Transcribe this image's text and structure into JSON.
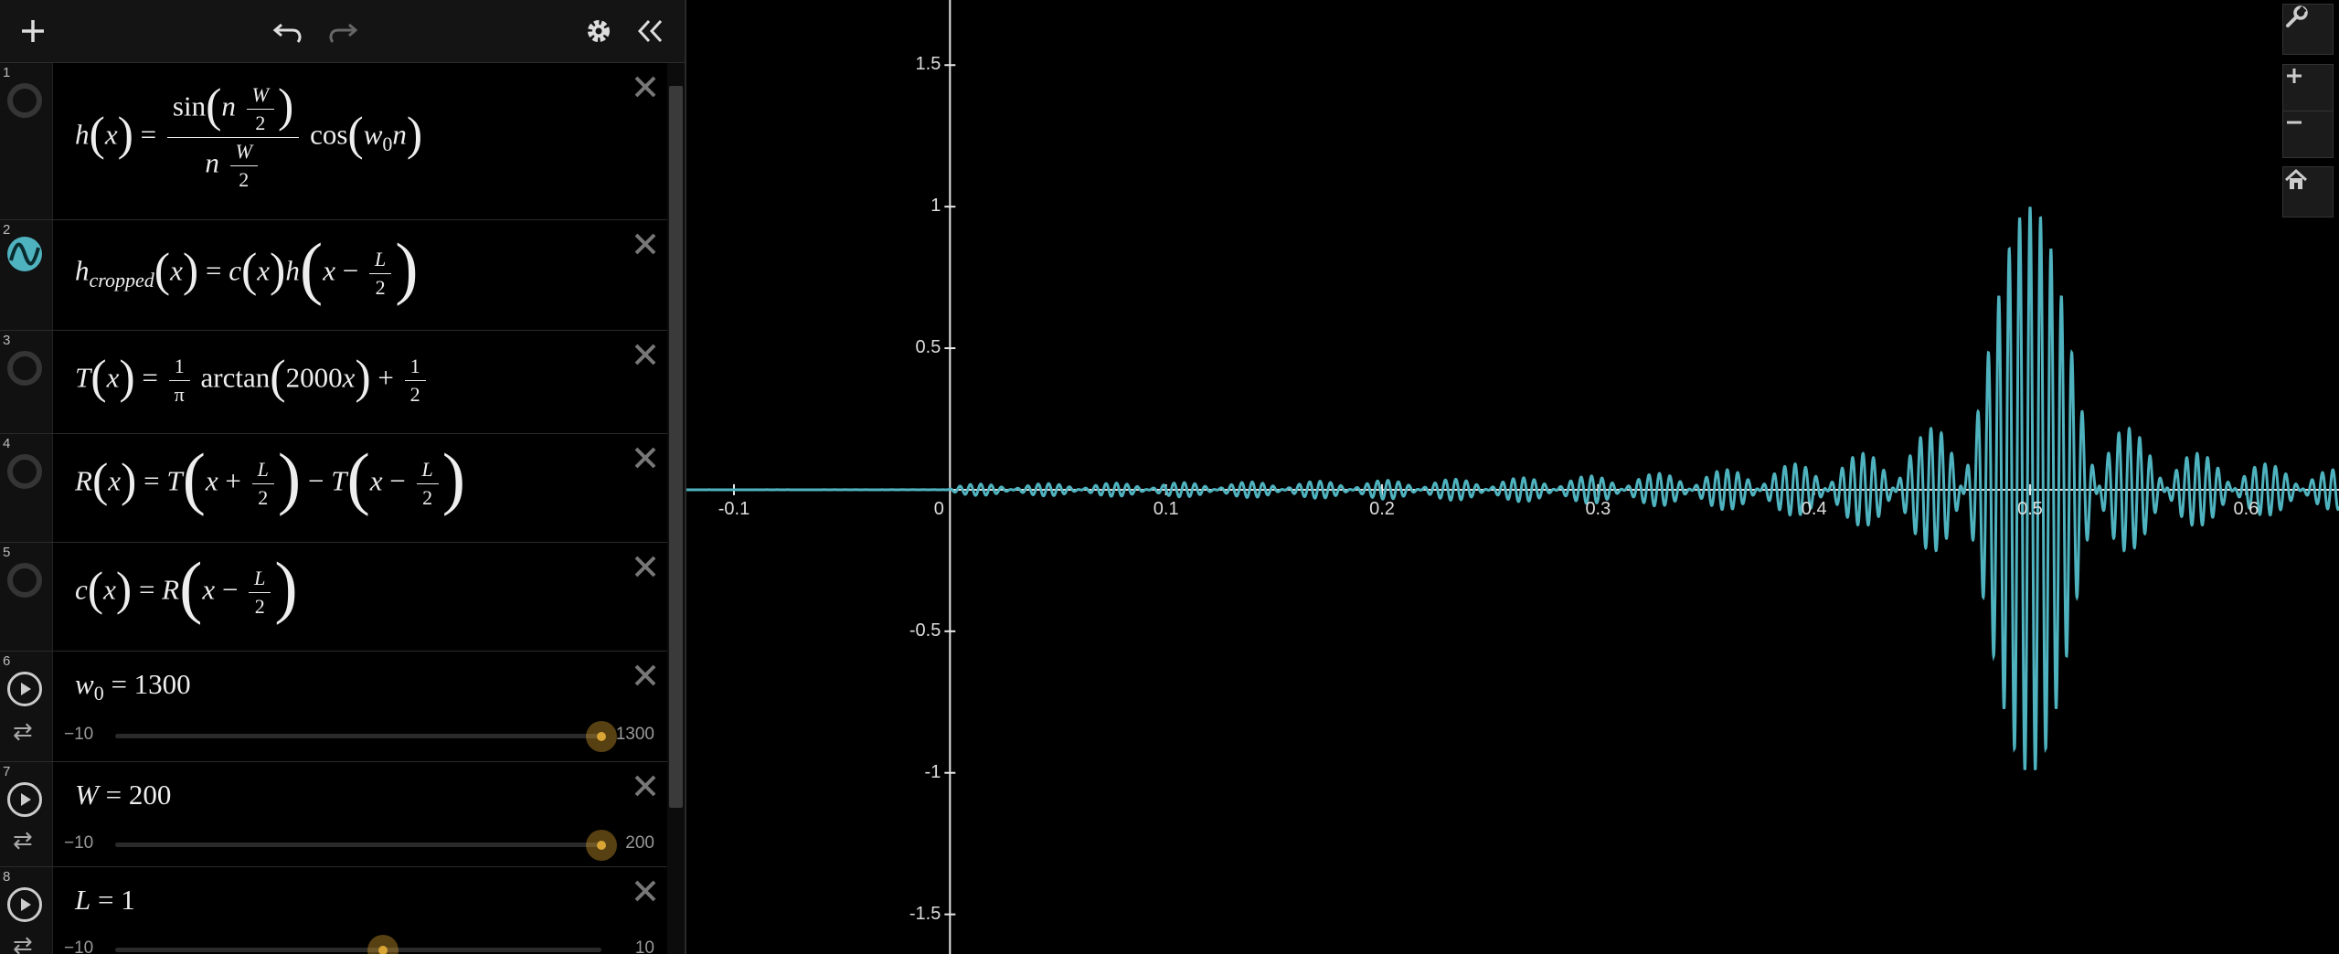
{
  "toolbar": {
    "icons": [
      "plus-icon",
      "undo-icon",
      "redo-icon",
      "gear-icon",
      "collapse-icon"
    ]
  },
  "expressions": [
    {
      "index": "1",
      "latex": "h(x) = sin(n W/2) / (n W/2) cos(w_0 n)"
    },
    {
      "index": "2",
      "latex": "h_cropped(x) = c(x) h(x − L/2)",
      "color": "#4fb3bf"
    },
    {
      "index": "3",
      "latex": "T(x) = 1/π arctan(2000x) + 1/2"
    },
    {
      "index": "4",
      "latex": "R(x) = T(x + L/2) − T(x − L/2)"
    },
    {
      "index": "5",
      "latex": "c(x) = R(x − L/2)"
    },
    {
      "index": "6",
      "name": "w",
      "sub": "0",
      "value": "1300",
      "min": "−10",
      "max": "1300",
      "position": 1.0
    },
    {
      "index": "7",
      "name": "W",
      "value": "200",
      "min": "−10",
      "max": "200",
      "position": 1.0
    },
    {
      "index": "8",
      "name": "L",
      "value": "1",
      "min": "−10",
      "max": "10",
      "position": 0.55
    }
  ],
  "math_text": {
    "h": "h",
    "x": "x",
    "n": "n",
    "W": "W",
    "two": "2",
    "sin": "sin",
    "cos": "cos",
    "w": "w",
    "zero": "0",
    "hcropped_h": "h",
    "cropped": "cropped",
    "c": "c",
    "L": "L",
    "minus": "−",
    "plus": "+",
    "T": "T",
    "one": "1",
    "pi": "π",
    "arctan": "arctan",
    "k2000": "2000",
    "R": "R",
    "eq": "="
  },
  "graph": {
    "x_ticks": [
      "-0.1",
      "0",
      "0.1",
      "0.2",
      "0.3",
      "0.4",
      "0.5",
      "0.6"
    ],
    "y_ticks": [
      "1.5",
      "1",
      "0.5",
      "-0.5",
      "-1",
      "-1.5"
    ],
    "curve_color": "#4fb3bf",
    "right_buttons": [
      "wrench-icon",
      "zoom-in-icon",
      "zoom-out-icon",
      "home-icon"
    ]
  },
  "chart_data": {
    "type": "line",
    "title": "",
    "xlabel": "",
    "ylabel": "",
    "xlim": [
      -0.122,
      0.643
    ],
    "ylim": [
      -1.64,
      1.73
    ],
    "grid": false,
    "series": [
      {
        "function": "h_cropped(x)",
        "color": "#4fb3bf",
        "peak_x": 0.5,
        "peak_y": 1.0,
        "zero_before_x": 0
      }
    ]
  }
}
